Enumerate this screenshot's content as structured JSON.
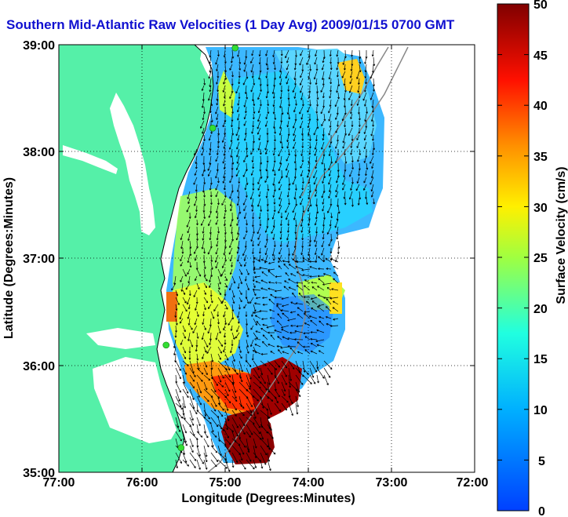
{
  "title": "Southern Mid-Atlantic Raw Velocities (1 Day Avg) 2009/01/15 0700 GMT",
  "axes": {
    "xlabel": "Longitude (Degrees:Minutes)",
    "ylabel": "Latitude (Degrees:Minutes)",
    "x_ticks": [
      "77:00",
      "76:00",
      "75:00",
      "74:00",
      "73:00",
      "72:00"
    ],
    "y_ticks": [
      "39:00",
      "38:00",
      "37:00",
      "36:00",
      "35:00"
    ],
    "xlim": [
      -77,
      -72
    ],
    "ylim": [
      35,
      39
    ],
    "grid": "dotted"
  },
  "colorbar": {
    "label": "Surface Velocity (cm/s)",
    "ticks": [
      "50",
      "45",
      "40",
      "35",
      "30",
      "25",
      "20",
      "15",
      "10",
      "5",
      "0"
    ],
    "range": [
      0,
      50
    ],
    "colormap": "jet"
  },
  "colors": {
    "land": "#55f0a8",
    "water": "#ffffff",
    "title": "#1010d0",
    "stations": "#33dd33"
  },
  "stations": [
    {
      "lon": -74.88,
      "lat": 38.97
    },
    {
      "lon": -75.15,
      "lat": 38.22
    },
    {
      "lon": -75.71,
      "lat": 36.19
    },
    {
      "lon": -75.53,
      "lat": 35.23
    }
  ]
}
